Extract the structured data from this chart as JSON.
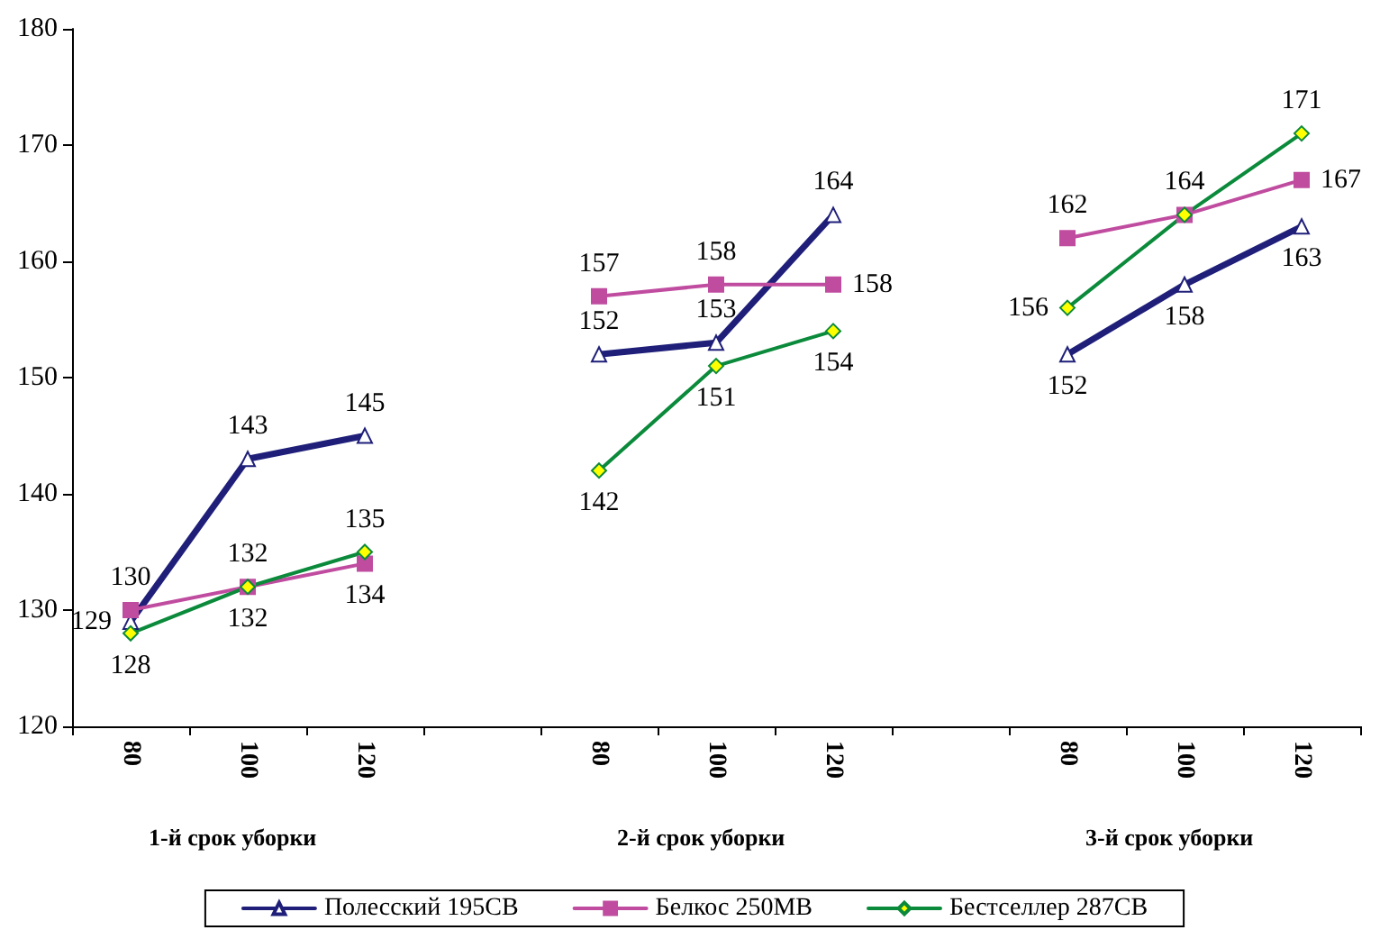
{
  "chart_data": {
    "type": "line",
    "categories": [
      "80",
      "100",
      "120",
      null,
      "80",
      "100",
      "120",
      null,
      "80",
      "100",
      "120"
    ],
    "series": [
      {
        "name": "Полесский 195СВ",
        "color": "#1f1f7a",
        "marker": "triangle",
        "values": [
          129,
          143,
          145,
          null,
          152,
          153,
          164,
          null,
          152,
          158,
          163
        ],
        "value_labels": [
          "129",
          "143",
          "145",
          null,
          "152",
          "153",
          "164",
          null,
          "152",
          "158",
          "163"
        ]
      },
      {
        "name": "Белкос 250МВ",
        "color": "#c04ca0",
        "marker": "square",
        "values": [
          130,
          132,
          134,
          null,
          157,
          158,
          158,
          null,
          162,
          164,
          167
        ],
        "value_labels": [
          "130",
          "132",
          "134",
          null,
          "157",
          "158",
          "158",
          null,
          "162",
          "164",
          "167"
        ]
      },
      {
        "name": "Бестселлер 287СВ",
        "color": "#0a8a3a",
        "marker": "diamond",
        "values": [
          128,
          132,
          135,
          null,
          142,
          151,
          154,
          null,
          156,
          164,
          171
        ],
        "value_labels": [
          "128",
          "132",
          "135",
          null,
          "142",
          "151",
          "154",
          null,
          "156",
          null,
          "171"
        ]
      }
    ],
    "annotations": [
      "1-й срок уборки",
      "2-й срок уборки",
      "3-й срок уборки"
    ],
    "ylim": [
      120,
      180
    ],
    "yticks": [
      120,
      130,
      140,
      150,
      160,
      170,
      180
    ],
    "grid": false,
    "legend": "bottom"
  }
}
